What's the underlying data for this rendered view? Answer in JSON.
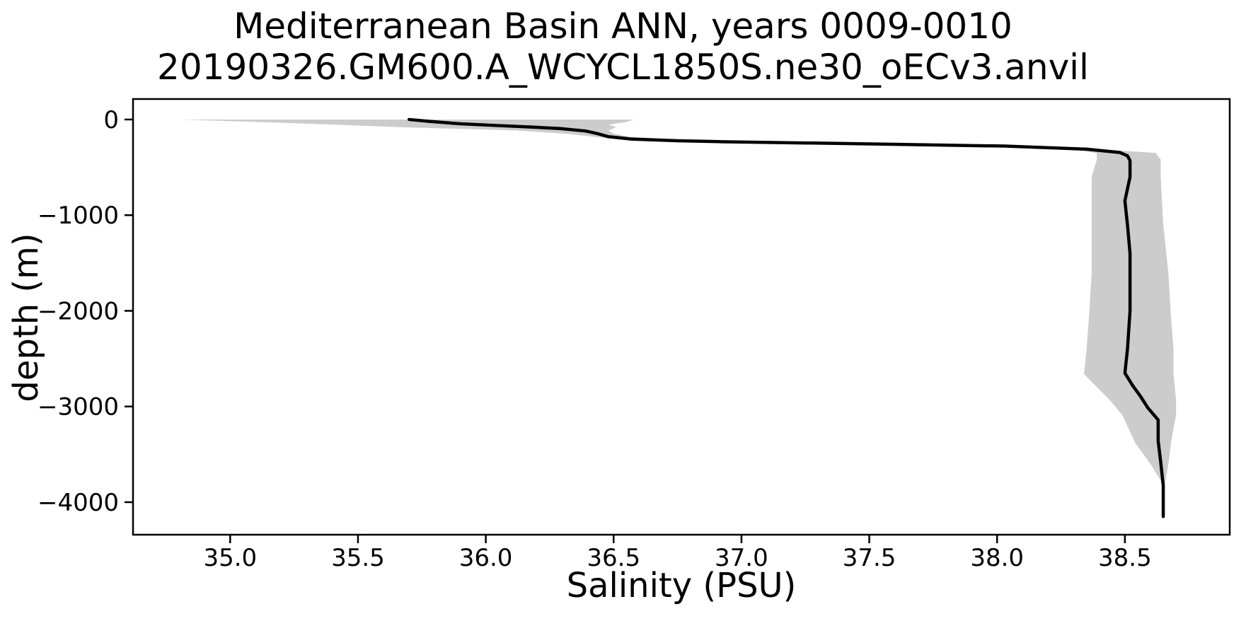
{
  "figure": {
    "title": "Mediterranean Basin ANN, years 0009-0010",
    "subtitle": "20190326.GM600.A_WCYCL1850S.ne30_oECv3.anvil"
  },
  "chart_data": {
    "type": "line",
    "title": "Mediterranean Basin ANN, years 0009-0010",
    "subtitle": "20190326.GM600.A_WCYCL1850S.ne30_oECv3.anvil",
    "xlabel": "Salinity (PSU)",
    "ylabel": "depth (m)",
    "xlim": [
      34.62,
      38.91
    ],
    "ylim_top": 214,
    "ylim_bottom": -4340,
    "grid": false,
    "legend": "none",
    "xticks": {
      "values": [
        35.0,
        35.5,
        36.0,
        36.5,
        37.0,
        37.5,
        38.0,
        38.5
      ],
      "labels": [
        "35.0",
        "35.5",
        "36.0",
        "36.5",
        "37.0",
        "37.5",
        "38.0",
        "38.5"
      ]
    },
    "yticks": {
      "values": [
        0,
        -1000,
        -2000,
        -3000,
        -4000
      ],
      "labels": [
        "0",
        "−1000",
        "−2000",
        "−3000",
        "−4000"
      ]
    },
    "colors": {
      "mean_line": "#000000",
      "std_band": "#cccccc",
      "spine": "#000000",
      "text": "#000000",
      "background": "#ffffff"
    },
    "series": [
      {
        "name": "mean salinity profile",
        "color": "#000000",
        "line_width": 4.5,
        "points_salinity_depth": [
          [
            35.7,
            0
          ],
          [
            35.78,
            -20
          ],
          [
            35.9,
            -45
          ],
          [
            36.02,
            -60
          ],
          [
            36.17,
            -78
          ],
          [
            36.29,
            -95
          ],
          [
            36.39,
            -120
          ],
          [
            36.44,
            -150
          ],
          [
            36.48,
            -180
          ],
          [
            36.57,
            -205
          ],
          [
            36.75,
            -222
          ],
          [
            36.92,
            -232
          ],
          [
            37.42,
            -252
          ],
          [
            38.03,
            -278
          ],
          [
            38.35,
            -310
          ],
          [
            38.48,
            -345
          ],
          [
            38.51,
            -380
          ],
          [
            38.52,
            -430
          ],
          [
            38.52,
            -600
          ],
          [
            38.5,
            -850
          ],
          [
            38.51,
            -1100
          ],
          [
            38.52,
            -1400
          ],
          [
            38.52,
            -1700
          ],
          [
            38.52,
            -2000
          ],
          [
            38.51,
            -2400
          ],
          [
            38.5,
            -2650
          ],
          [
            38.53,
            -2780
          ],
          [
            38.56,
            -2890
          ],
          [
            38.59,
            -3015
          ],
          [
            38.63,
            -3140
          ],
          [
            38.63,
            -3360
          ],
          [
            38.64,
            -3580
          ],
          [
            38.65,
            -3830
          ],
          [
            38.65,
            -4150
          ]
        ]
      }
    ],
    "band": {
      "name": "salinity std envelope",
      "color": "#cccccc",
      "depths": [
        0,
        -25,
        -55,
        -80,
        -115,
        -150,
        -180,
        -205,
        -230,
        -252,
        -278,
        -310,
        -350,
        -420,
        -600,
        -1100,
        -1600,
        -2050,
        -2400,
        -2660,
        -2930,
        -3090,
        -3380,
        -3600,
        -3840
      ],
      "smin": [
        34.81,
        35.1,
        35.42,
        35.66,
        36.12,
        36.32,
        36.42,
        36.52,
        36.86,
        37.36,
        37.99,
        38.28,
        38.39,
        38.39,
        38.37,
        38.37,
        38.37,
        38.36,
        38.35,
        38.34,
        38.44,
        38.49,
        38.54,
        38.6,
        38.655
      ],
      "smax": [
        36.58,
        36.55,
        36.48,
        36.51,
        36.48,
        36.5,
        36.56,
        36.72,
        36.98,
        37.48,
        38.08,
        38.4,
        38.62,
        38.64,
        38.64,
        38.65,
        38.67,
        38.68,
        38.69,
        38.69,
        38.7,
        38.7,
        38.68,
        38.67,
        38.655
      ]
    }
  }
}
